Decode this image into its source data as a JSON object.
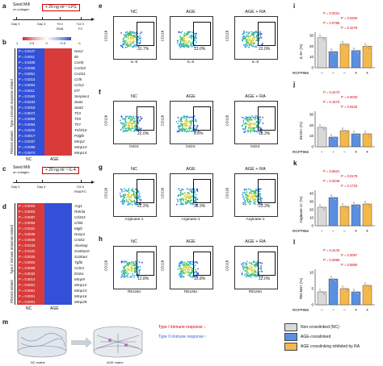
{
  "figure": {
    "panel_labels": [
      "a",
      "b",
      "c",
      "d",
      "e",
      "f",
      "g",
      "h",
      "i",
      "j",
      "k",
      "l",
      "m"
    ],
    "panel_a": {
      "seed": "Seed MΦ",
      "seed_sub": "on collagen",
      "treatment": "+ 20 ng ml⁻¹ LPS",
      "times": [
        "Day 0",
        "Day 4",
        "+6 h",
        "+12 h"
      ],
      "subs": [
        "RNA",
        "FC"
      ]
    },
    "panel_b": {
      "scale_labels": [
        "1",
        "0.5",
        "0",
        "−0.5",
        "−1"
      ],
      "cols": [
        "NC",
        "AGE"
      ],
      "group1": "Type I immune response related",
      "group2": "Fibrosis related",
      "genes": [
        "Nos2",
        "Il6",
        "Cxcl5",
        "Cxcl10",
        "Cxcl11",
        "Ccl5",
        "Ccl12",
        "Irf7",
        "Serpine1",
        "Stat1",
        "Stat3",
        "Tlr3",
        "Tlr9",
        "Tlr7",
        "Tnfsf10",
        "Pdgfb",
        "Mmp2",
        "Mmp13",
        "Mmp14"
      ],
      "pvalues": [
        "P = 0.0127",
        "P = 0.0011",
        "P = 0.0405",
        "P = 0.0026",
        "P = 0.0051",
        "P = 0.0210",
        "P = 0.0064",
        "P = 0.0011",
        "P = 0.0162",
        "P = 0.0233",
        "P = 0.0018",
        "P = 0.0072",
        "P = 0.0059",
        "P = 0.0093",
        "P = 0.0220",
        "P = 0.0017",
        "P = 0.0337",
        "P = 0.0089",
        "P = 0.0074"
      ]
    },
    "panel_c": {
      "seed": "Seed MΦ",
      "seed_sub": "on collagen",
      "treatment": "+ 20 ng ml⁻¹ IL-4",
      "times": [
        "Day 0",
        "Day 4",
        "+24 h"
      ],
      "subs": [
        "RNA/FC"
      ]
    },
    "panel_d": {
      "group1": "Type II immune response related",
      "group2": "Fibrosis related",
      "cols": [
        "NC",
        "AGE"
      ],
      "genes": [
        "Arg1",
        "Retnla",
        "Cd163",
        "Chil4",
        "Mgl2",
        "Dusp1",
        "Creb3",
        "Alox5ap",
        "S100a10",
        "S100a4",
        "Tgfbi",
        "Ccl24",
        "Il10ra",
        "Mmp9",
        "Mmp12",
        "Mmp13",
        "Mmp16",
        "Mmp28"
      ],
      "pvalues": [
        "P = 0.0023",
        "P = 0.0004",
        "P = 0.0087",
        "P = 0.0056",
        "P = 0.0331",
        "P = 0.0039",
        "P = 0.0049",
        "P = 0.0103",
        "P = 0.0102",
        "P = 0.0025",
        "P = 0.0002",
        "P = 0.0008",
        "P = 0.0032",
        "P = 0.0014",
        "P = 0.0001",
        "P = 0.0001",
        "P = 0.0001",
        "P = 0.0001"
      ]
    },
    "facs": {
      "col_titles": [
        "NC",
        "AGE",
        "AGE + RA"
      ],
      "ylabel": "CD11b",
      "rows": [
        {
          "marker": "IL-6",
          "pcts": [
            "31.7%",
            "13.0%",
            "22.0%"
          ]
        },
        {
          "marker": "iNOS",
          "pcts": [
            "22.0%",
            "8.6%",
            "18.3%"
          ]
        },
        {
          "marker": "Arginase-1",
          "pcts": [
            "22.2%",
            "38.3%",
            "23.3%"
          ]
        },
        {
          "marker": "RELMα",
          "pcts": [
            "12.8%",
            "12.8%",
            "22.0%"
          ]
        }
      ]
    },
    "bars": [
      {
        "ylabel": "IL-6+ (%)",
        "ymax": 30,
        "ticks": [
          "0",
          "10",
          "20",
          "30"
        ],
        "pvals": [
          "P = 0.0031",
          "P = 0.0200",
          "P = 0.0785",
          "P = 0.3278"
        ],
        "values": [
          28,
          15,
          22,
          16,
          20
        ]
      },
      {
        "ylabel": "iNOS+ (%)",
        "ymax": 30,
        "ticks": [
          "0",
          "10",
          "20",
          "30"
        ],
        "pvals": [
          "P = 0.4470",
          "P = 0.0020",
          "P = 0.1570",
          "P = 0.9433"
        ],
        "values": [
          18,
          9,
          15,
          12,
          12
        ]
      },
      {
        "ylabel": "Arginase-1+ (%)",
        "ymax": 40,
        "ticks": [
          "0",
          "10",
          "20",
          "30",
          "40"
        ],
        "pvals": [
          "P = 0.5831",
          "P = 0.0179",
          "P = 0.2049",
          "P = 0.1733"
        ],
        "values": [
          23,
          35,
          24,
          26,
          27
        ]
      },
      {
        "ylabel": "RELMα+ (%)",
        "ymax": 10,
        "ticks": [
          "0",
          "5",
          "10"
        ],
        "pvals": [
          "P = 0.2140",
          "P = 0.0057",
          "P = 0.2998",
          "P = 0.5890"
        ],
        "values": [
          4,
          8,
          5,
          4,
          6
        ]
      }
    ],
    "rgfp_label": "RGFP966",
    "rgfp_signs": [
      "−",
      "−",
      "−",
      "+",
      "+"
    ],
    "legend": [
      "Non-crosslinked (NC)",
      "AGE-crosslinked",
      "AGE crosslinking inhibited by RA"
    ],
    "panel_m": {
      "nc": "NC matrix",
      "age": "AGE matrix",
      "type1": "Type I immune response ↓",
      "type2": "Type II immune response ↑"
    },
    "colors": {
      "nc": "#d9d9d9",
      "age": "#5b8fe0",
      "ra": "#f5b84a",
      "red": "#cc0000"
    }
  }
}
